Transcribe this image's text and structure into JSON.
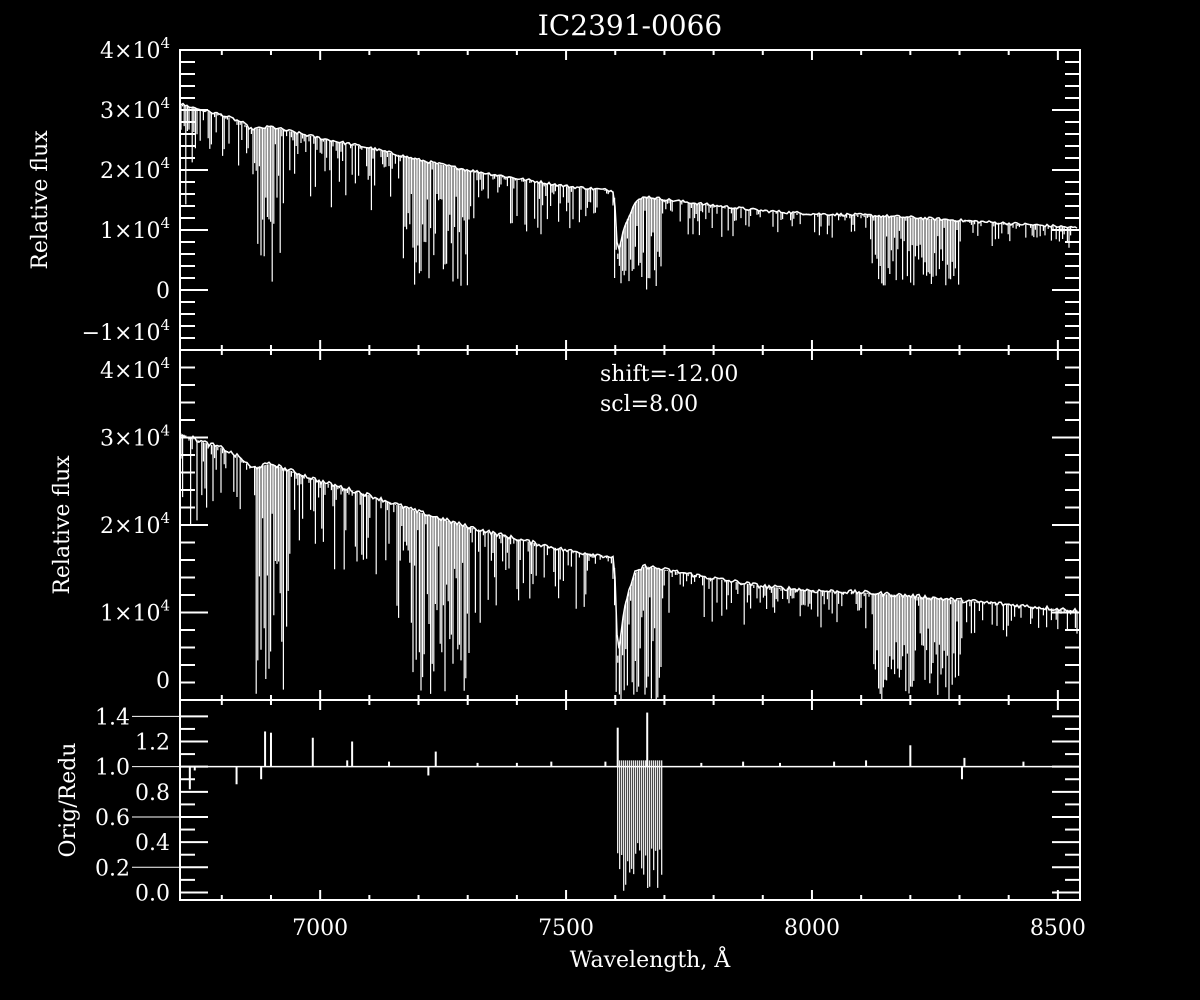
{
  "chart_data": [
    {
      "type": "line",
      "title": "IC2391-0066",
      "ylabel": "Relative flux",
      "xlim": [
        6715,
        8545
      ],
      "ylim": [
        -10000,
        40000
      ],
      "yticks": [
        {
          "v": 40000,
          "m": "4",
          "e": "4"
        },
        {
          "v": 30000,
          "m": "3",
          "e": "4"
        },
        {
          "v": 20000,
          "m": "2",
          "e": "4"
        },
        {
          "v": 10000,
          "m": "1",
          "e": "4"
        },
        {
          "v": 0,
          "m": "0",
          "e": ""
        },
        {
          "v": -10000,
          "m": "−1",
          "e": "4"
        }
      ],
      "continuum": {
        "x": [
          6715,
          6760,
          6800,
          6840,
          6860,
          6900,
          7000,
          7100,
          7200,
          7300,
          7400,
          7500,
          7590,
          7598,
          7605,
          7620,
          7640,
          7660,
          7700,
          7800,
          7900,
          8000,
          8100,
          8200,
          8300,
          8400,
          8500,
          8545
        ],
        "y": [
          31000,
          30000,
          29200,
          28000,
          26800,
          27200,
          25300,
          23700,
          21700,
          20000,
          18600,
          17300,
          16600,
          16400,
          6000,
          11000,
          14500,
          15600,
          15100,
          14100,
          13200,
          12700,
          12500,
          12100,
          11600,
          11100,
          10600,
          10300
        ]
      },
      "line_floor": {
        "x": [
          6715,
          6750,
          6780,
          6860,
          6870,
          6925,
          6940,
          7150,
          7170,
          7300,
          7330,
          7590,
          7600,
          7690,
          7700,
          8110,
          8130,
          8300,
          8320,
          8545
        ],
        "y": [
          12000,
          18000,
          20000,
          20000,
          500,
          500,
          14000,
          13000,
          500,
          500,
          9000,
          9000,
          0,
          0,
          9000,
          8000,
          500,
          500,
          7000,
          7000
        ]
      }
    },
    {
      "type": "line",
      "ylabel": "Relative flux",
      "xlim": [
        6715,
        8545
      ],
      "ylim": [
        0,
        40000
      ],
      "annotations": [
        "shift=-12.00",
        "scl=8.00"
      ],
      "yticks": [
        {
          "v": 40000,
          "m": "4",
          "e": "4"
        },
        {
          "v": 30000,
          "m": "3",
          "e": "4"
        },
        {
          "v": 20000,
          "m": "2",
          "e": "4"
        },
        {
          "v": 10000,
          "m": "1",
          "e": "4"
        },
        {
          "v": 0,
          "m": "0",
          "e": ""
        }
      ],
      "continuum": {
        "x": [
          6715,
          6760,
          6800,
          6840,
          6860,
          6900,
          7000,
          7100,
          7200,
          7300,
          7400,
          7500,
          7590,
          7598,
          7605,
          7620,
          7640,
          7660,
          7700,
          7800,
          7900,
          8000,
          8100,
          8200,
          8300,
          8400,
          8500,
          8545
        ],
        "y": [
          30500,
          29500,
          28800,
          27600,
          26500,
          27000,
          25000,
          23400,
          21500,
          19800,
          18400,
          17100,
          16400,
          16200,
          5000,
          11000,
          14500,
          15300,
          14900,
          13900,
          13000,
          12500,
          12300,
          11900,
          11400,
          10900,
          10400,
          10200
        ]
      },
      "line_floor": {
        "x": [
          6715,
          6750,
          6780,
          6860,
          6870,
          6925,
          6940,
          7150,
          7170,
          7300,
          7330,
          7590,
          7600,
          7690,
          7700,
          8110,
          8130,
          8300,
          8320,
          8545
        ],
        "y": [
          12000,
          18000,
          20000,
          20000,
          0,
          0,
          14000,
          13000,
          0,
          0,
          9000,
          9000,
          0,
          0,
          9000,
          8000,
          0,
          0,
          7000,
          7000
        ]
      }
    },
    {
      "type": "line",
      "xlabel": "Wavelength, Å",
      "ylabel": "Orig/Redu",
      "xlim": [
        6715,
        8545
      ],
      "ylim": [
        -0.06,
        1.53
      ],
      "xticks": [
        7000,
        7500,
        8000,
        8500
      ],
      "yticks": [
        "0.0",
        "0.2",
        "0.4",
        "0.6",
        "0.8",
        "1.0",
        "1.2",
        "1.4"
      ],
      "baseline": 1.0,
      "spikes": [
        [
          6735,
          0.82
        ],
        [
          6745,
          0.97
        ],
        [
          6830,
          0.86
        ],
        [
          6880,
          0.9
        ],
        [
          6888,
          1.28
        ],
        [
          6900,
          1.27
        ],
        [
          6985,
          1.23
        ],
        [
          7055,
          1.05
        ],
        [
          7065,
          1.2
        ],
        [
          7140,
          1.04
        ],
        [
          7220,
          0.93
        ],
        [
          7235,
          1.12
        ],
        [
          7320,
          1.03
        ],
        [
          7400,
          1.03
        ],
        [
          7470,
          1.04
        ],
        [
          7580,
          1.04
        ],
        [
          7605,
          1.31
        ],
        [
          7665,
          1.43
        ],
        [
          7775,
          1.03
        ],
        [
          7860,
          1.04
        ],
        [
          7935,
          1.03
        ],
        [
          8045,
          1.04
        ],
        [
          8110,
          1.05
        ],
        [
          8200,
          1.17
        ],
        [
          8305,
          0.9
        ],
        [
          8310,
          1.07
        ],
        [
          8430,
          1.04
        ]
      ],
      "band": {
        "x": [
          7605,
          7695
        ],
        "min": 0.0,
        "max": 1.05
      }
    }
  ]
}
